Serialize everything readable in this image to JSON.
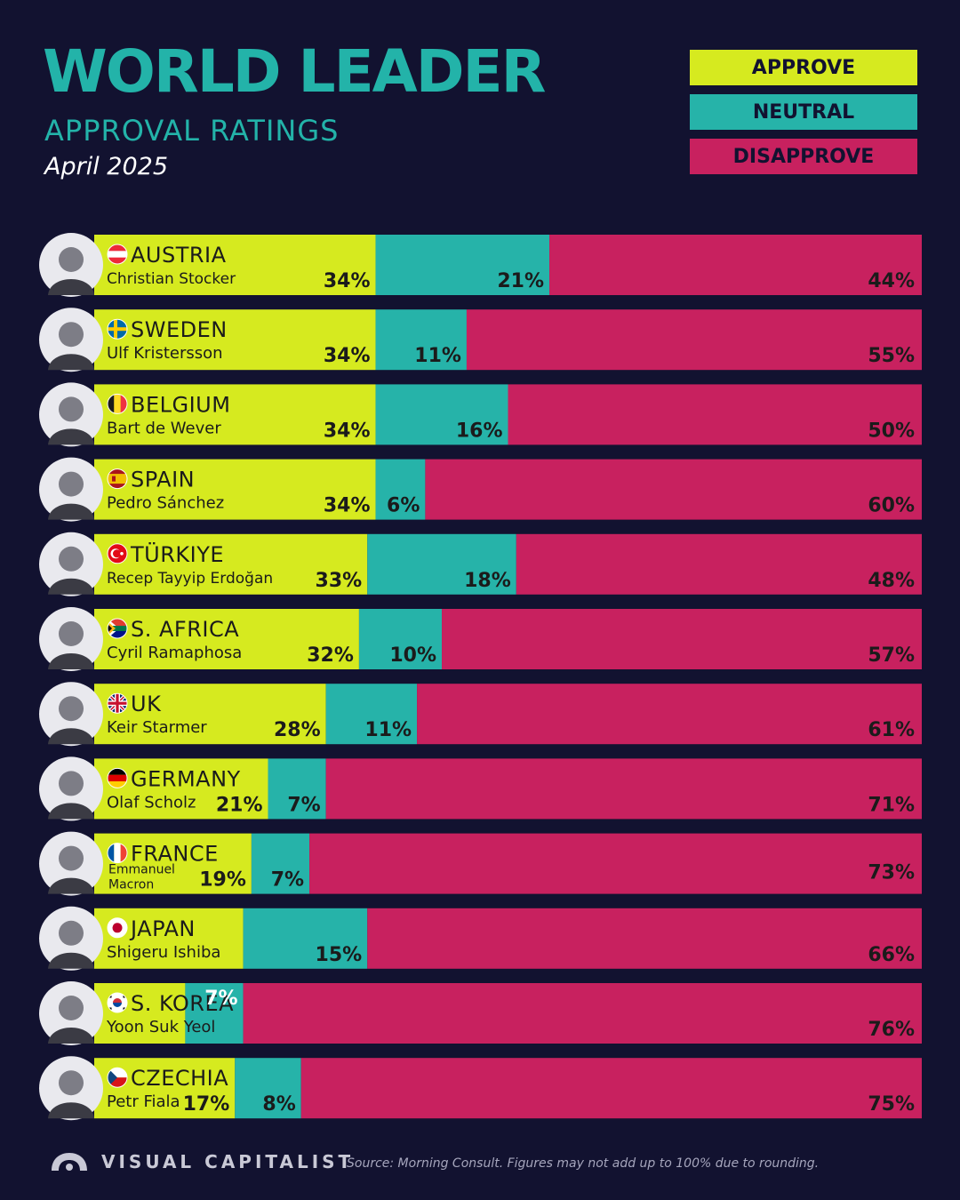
{
  "header": {
    "title": "WORLD LEADER",
    "subtitle": "APPROVAL RATINGS",
    "date": "April 2025"
  },
  "legend": {
    "approve": "APPROVE",
    "neutral": "NEUTRAL",
    "disapprove": "DISAPPROVE"
  },
  "colors": {
    "approve": "#d6ea1f",
    "neutral": "#26b3a9",
    "disapprove": "#c8215f",
    "background": "#121230",
    "title": "#23b3a9"
  },
  "chart_data": {
    "type": "bar",
    "stacked": true,
    "orientation": "horizontal",
    "categories": [
      "AUSTRIA",
      "SWEDEN",
      "BELGIUM",
      "SPAIN",
      "TÜRKIYE",
      "S. AFRICA",
      "UK",
      "GERMANY",
      "FRANCE",
      "JAPAN",
      "S. KOREA",
      "CZECHIA"
    ],
    "leaders": [
      "Christian Stocker",
      "Ulf Kristersson",
      "Bart de Wever",
      "Pedro Sánchez",
      "Recep Tayyip Erdoğan",
      "Cyril Ramaphosa",
      "Keir Starmer",
      "Olaf Scholz",
      "Emmanuel Macron",
      "Shigeru Ishiba",
      "Yoon Suk Yeol",
      "Petr Fiala"
    ],
    "flags": [
      "austria-flag-icon",
      "sweden-flag-icon",
      "belgium-flag-icon",
      "spain-flag-icon",
      "turkiye-flag-icon",
      "south-africa-flag-icon",
      "uk-flag-icon",
      "germany-flag-icon",
      "france-flag-icon",
      "japan-flag-icon",
      "south-korea-flag-icon",
      "czechia-flag-icon"
    ],
    "series": [
      {
        "name": "APPROVE",
        "values": [
          34,
          34,
          34,
          34,
          33,
          32,
          28,
          21,
          19,
          18,
          11,
          17
        ],
        "labels": [
          "34%",
          "34%",
          "34%",
          "34%",
          "33%",
          "32%",
          "28%",
          "21%",
          "19%",
          "",
          "",
          "17%"
        ]
      },
      {
        "name": "NEUTRAL",
        "values": [
          21,
          11,
          16,
          6,
          18,
          10,
          11,
          7,
          7,
          15,
          7,
          8
        ],
        "labels": [
          "21%",
          "11%",
          "16%",
          "6%",
          "18%",
          "10%",
          "11%",
          "7%",
          "7%",
          "15%",
          "7%",
          "8%"
        ]
      },
      {
        "name": "DISAPPROVE",
        "values": [
          44,
          55,
          50,
          60,
          48,
          57,
          61,
          71,
          73,
          66,
          76,
          75
        ],
        "labels": [
          "44%",
          "55%",
          "50%",
          "60%",
          "48%",
          "57%",
          "61%",
          "71%",
          "73%",
          "66%",
          "76%",
          "75%"
        ]
      }
    ],
    "xlim": [
      0,
      100
    ]
  },
  "footer": {
    "brand": "VISUAL CAPITALIST",
    "source": "Source: Morning Consult. Figures may not add up to 100% due to rounding."
  }
}
